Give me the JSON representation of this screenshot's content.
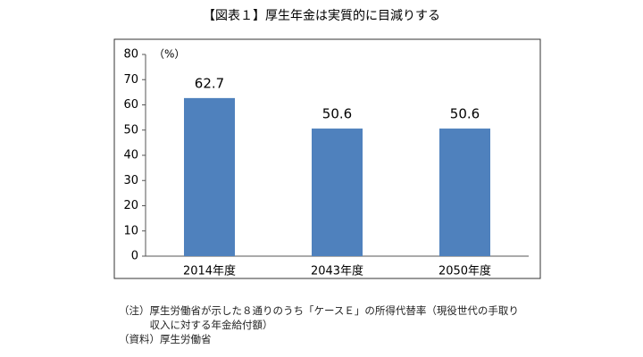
{
  "chart_data": {
    "type": "bar",
    "title": "【図表１】厚生年金は実質的に目減りする",
    "y_unit": "（%）",
    "categories": [
      "2014年度",
      "2043年度",
      "2050年度"
    ],
    "values": [
      62.7,
      50.6,
      50.6
    ],
    "color": "#4f81bd",
    "ylim": [
      0,
      80
    ],
    "yticks": [
      0,
      10,
      20,
      30,
      40,
      50,
      60,
      70,
      80
    ],
    "grid": false,
    "notes": [
      {
        "label": "（注）",
        "text": "厚生労働省が示した８通りのうち「ケースＥ」の所得代替率（現役世代の手取り収入に対する年金給付額）"
      },
      {
        "label": "（資料）",
        "text": "厚生労働省"
      }
    ]
  }
}
